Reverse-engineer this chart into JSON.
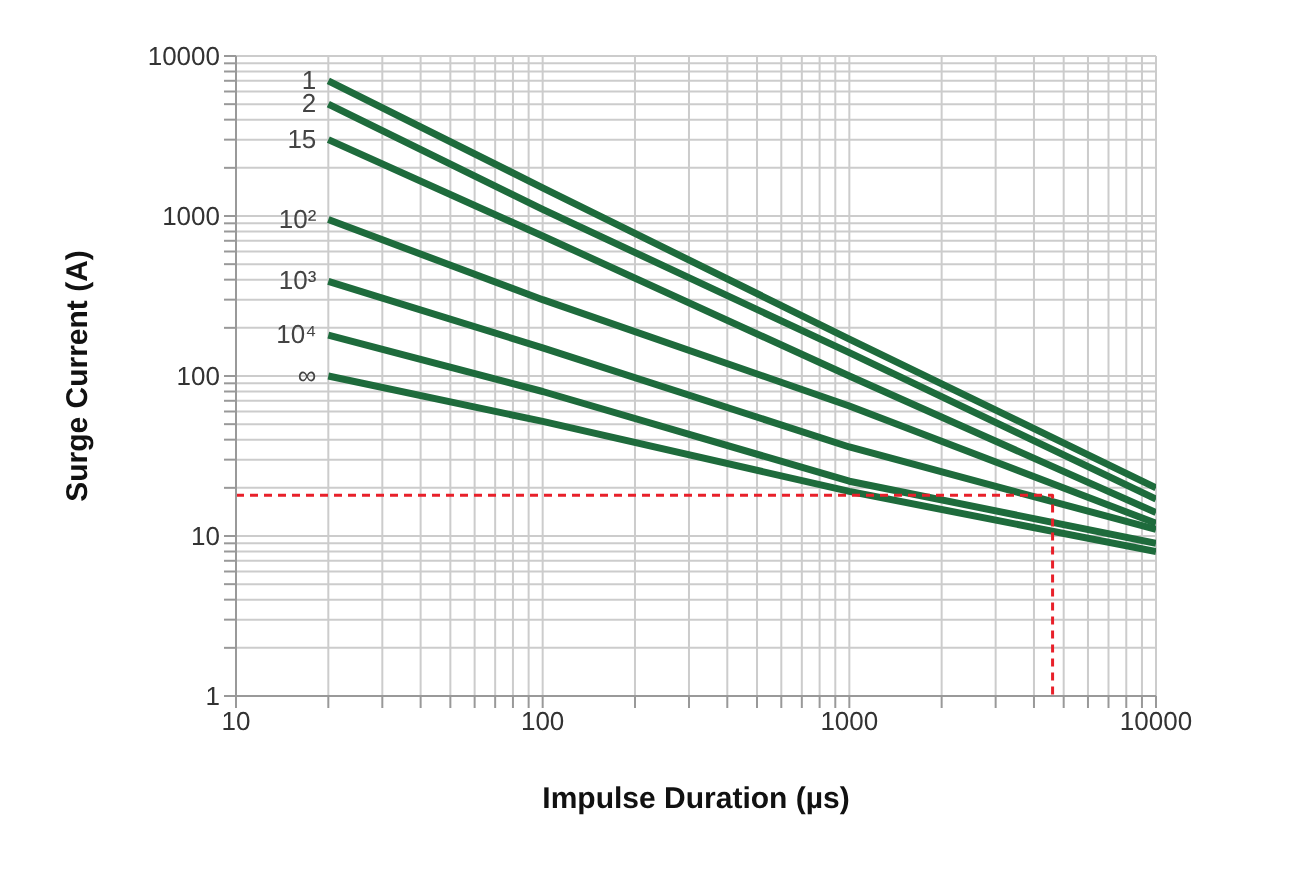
{
  "chart_data": {
    "type": "line",
    "xlabel": "Impulse Duration (µs)",
    "ylabel": "Surge Current (A)",
    "log": "xy",
    "grid": true,
    "marker": "none",
    "line_style": "solid",
    "xlim": [
      10,
      10000
    ],
    "ylim": [
      1,
      10000
    ],
    "xticks": [
      10,
      {
        "value": 20,
        "label": null
      },
      {
        "value": 30,
        "label": null
      },
      {
        "value": 40,
        "label": null
      },
      {
        "value": 50,
        "label": null
      },
      {
        "value": 60,
        "label": null
      },
      {
        "value": 70,
        "label": null
      },
      {
        "value": 80,
        "label": null
      },
      {
        "value": 90,
        "label": null
      },
      100,
      {
        "value": 200,
        "label": null
      },
      {
        "value": 300,
        "label": null
      },
      {
        "value": 400,
        "label": null
      },
      {
        "value": 500,
        "label": null
      },
      {
        "value": 600,
        "label": null
      },
      {
        "value": 700,
        "label": null
      },
      {
        "value": 800,
        "label": null
      },
      {
        "value": 900,
        "label": null
      },
      1000,
      {
        "value": 2000,
        "label": null
      },
      {
        "value": 3000,
        "label": null
      },
      {
        "value": 4000,
        "label": null
      },
      {
        "value": 5000,
        "label": null
      },
      {
        "value": 6000,
        "label": null
      },
      {
        "value": 7000,
        "label": null
      },
      {
        "value": 8000,
        "label": null
      },
      {
        "value": 9000,
        "label": null
      },
      10000
    ],
    "yticks": [
      1,
      {
        "value": 2,
        "label": null
      },
      {
        "value": 3,
        "label": null
      },
      {
        "value": 4,
        "label": null
      },
      {
        "value": 5,
        "label": null
      },
      {
        "value": 6,
        "label": null
      },
      {
        "value": 7,
        "label": null
      },
      {
        "value": 8,
        "label": null
      },
      {
        "value": 9,
        "label": null
      },
      10,
      {
        "value": 20,
        "label": null
      },
      {
        "value": 30,
        "label": null
      },
      {
        "value": 40,
        "label": null
      },
      {
        "value": 50,
        "label": null
      },
      {
        "value": 60,
        "label": null
      },
      {
        "value": 70,
        "label": null
      },
      {
        "value": 80,
        "label": null
      },
      {
        "value": 90,
        "label": null
      },
      100,
      {
        "value": 200,
        "label": null
      },
      {
        "value": 300,
        "label": null
      },
      {
        "value": 400,
        "label": null
      },
      {
        "value": 500,
        "label": null
      },
      {
        "value": 600,
        "label": null
      },
      {
        "value": 700,
        "label": null
      },
      {
        "value": 800,
        "label": null
      },
      {
        "value": 900,
        "label": null
      },
      1000,
      {
        "value": 2000,
        "label": null
      },
      {
        "value": 3000,
        "label": null
      },
      {
        "value": 4000,
        "label": null
      },
      {
        "value": 5000,
        "label": null
      },
      {
        "value": 6000,
        "label": null
      },
      {
        "value": 7000,
        "label": null
      },
      {
        "value": 8000,
        "label": null
      },
      {
        "value": 9000,
        "label": null
      },
      10000
    ],
    "series": [
      {
        "name": "1",
        "color": "#1e6b3c",
        "x": [
          20,
          100,
          1000,
          10000
        ],
        "values": [
          7000,
          1500,
          170,
          20
        ]
      },
      {
        "name": "2",
        "color": "#1e6b3c",
        "x": [
          20,
          100,
          1000,
          10000
        ],
        "values": [
          5000,
          1100,
          140,
          17
        ]
      },
      {
        "name": "15",
        "color": "#1e6b3c",
        "x": [
          20,
          100,
          1000,
          10000
        ],
        "values": [
          3000,
          750,
          100,
          14
        ]
      },
      {
        "name": "10²",
        "color": "#1e6b3c",
        "x": [
          20,
          100,
          1000,
          10000
        ],
        "values": [
          950,
          300,
          65,
          12
        ]
      },
      {
        "name": "10³",
        "color": "#1e6b3c",
        "x": [
          20,
          100,
          1000,
          10000
        ],
        "values": [
          390,
          150,
          36,
          11
        ]
      },
      {
        "name": "10⁴",
        "color": "#1e6b3c",
        "x": [
          20,
          100,
          1000,
          10000
        ],
        "values": [
          180,
          80,
          22,
          9
        ]
      },
      {
        "name": "∞",
        "color": "#1e6b3c",
        "x": [
          20,
          100,
          1000,
          10000
        ],
        "values": [
          100,
          52,
          19,
          8
        ]
      },
      {
        "color": "#e8202a",
        "line_style": "dashed",
        "x": [
          10,
          4600,
          4600
        ],
        "values": [
          18,
          18,
          1
        ]
      }
    ]
  }
}
